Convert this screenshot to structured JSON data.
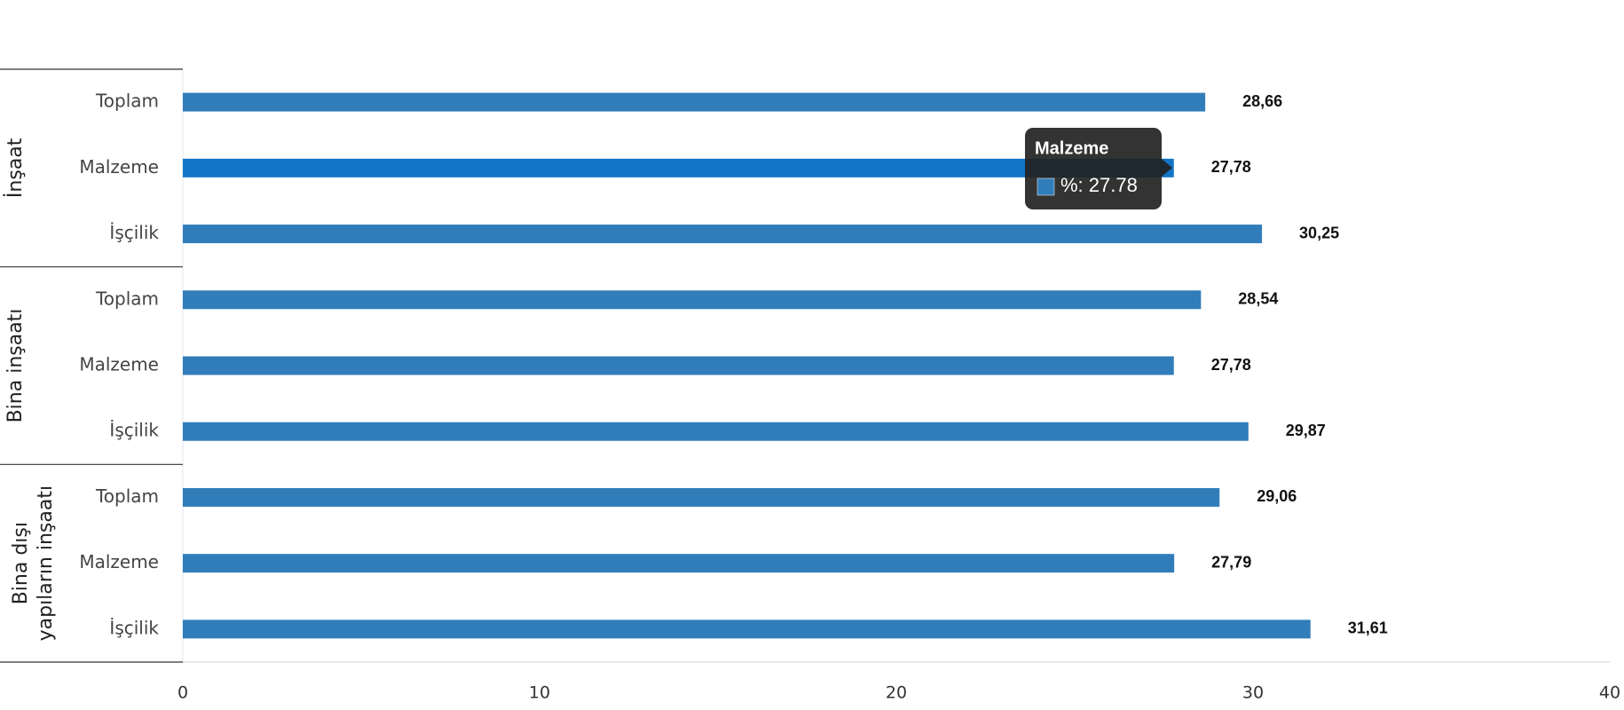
{
  "chart_data": {
    "type": "bar",
    "orientation": "horizontal",
    "color": "#317dba",
    "highlight_color": "#1275c5",
    "xlim": [
      0,
      40
    ],
    "xticks": [
      0,
      10,
      20,
      30,
      40
    ],
    "groups": [
      {
        "label_lines": [
          "İnşaat"
        ],
        "categories": [
          "Toplam",
          "Malzeme",
          "İşçilik"
        ],
        "values": [
          28.66,
          27.78,
          30.25
        ],
        "value_labels": [
          "28,66",
          "27,78",
          "30,25"
        ]
      },
      {
        "label_lines": [
          "Bina inşaatı"
        ],
        "categories": [
          "Toplam",
          "Malzeme",
          "İşçilik"
        ],
        "values": [
          28.54,
          27.78,
          29.87
        ],
        "value_labels": [
          "28,54",
          "27,78",
          "29,87"
        ]
      },
      {
        "label_lines": [
          "Bina dışı",
          "yapıların inşaatı"
        ],
        "categories": [
          "Toplam",
          "Malzeme",
          "İşçilik"
        ],
        "values": [
          29.06,
          27.79,
          31.61
        ],
        "value_labels": [
          "29,06",
          "27,79",
          "31,61"
        ]
      }
    ],
    "tooltip": {
      "title": "Malzeme",
      "text": "%: 27.78"
    }
  }
}
